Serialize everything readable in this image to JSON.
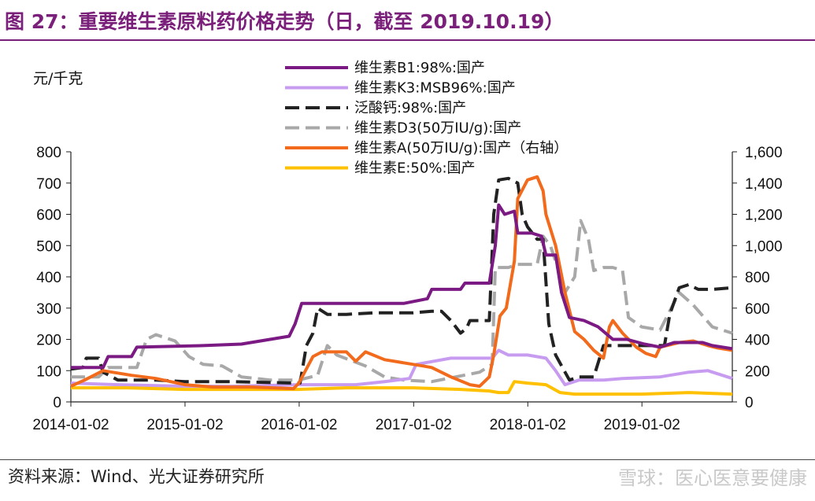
{
  "figure": {
    "title": "图 27：重要维生素原料药价格走势（日，截至 2019.10.19）",
    "source": "资料来源：Wind、光大证券研究所",
    "watermark": "雪球：医心医意要健康",
    "title_color": "#7a1f7a"
  },
  "chart_data": {
    "type": "line",
    "ylabel": "元/千克",
    "ylim": [
      0,
      800
    ],
    "y_ticks": [
      "0",
      "100",
      "200",
      "300",
      "400",
      "500",
      "600",
      "700",
      "800"
    ],
    "y2lim": [
      0,
      1600
    ],
    "y2_ticks": [
      "0",
      "200",
      "400",
      "600",
      "800",
      "1,000",
      "1,200",
      "1,400",
      "1,600"
    ],
    "x_range": [
      "2014-01-02",
      "2019-10-18"
    ],
    "x_ticks": [
      "2014-01-02",
      "2015-01-02",
      "2016-01-02",
      "2017-01-02",
      "2018-01-02",
      "2019-01-02"
    ],
    "legend_position": "top-center",
    "grid": false,
    "series": [
      {
        "name": "维生素B1:98%:国产",
        "color": "#7b1a82",
        "dash": "solid",
        "axis": "left",
        "points": [
          [
            "2014-01-02",
            110
          ],
          [
            "2014-04-15",
            110
          ],
          [
            "2014-05-01",
            145
          ],
          [
            "2014-07-15",
            145
          ],
          [
            "2014-08-01",
            175
          ],
          [
            "2015-03-01",
            180
          ],
          [
            "2015-07-01",
            185
          ],
          [
            "2015-10-01",
            200
          ],
          [
            "2015-12-01",
            210
          ],
          [
            "2015-12-20",
            250
          ],
          [
            "2016-01-10",
            315
          ],
          [
            "2016-12-01",
            315
          ],
          [
            "2017-02-15",
            330
          ],
          [
            "2017-03-01",
            360
          ],
          [
            "2017-06-01",
            360
          ],
          [
            "2017-06-15",
            380
          ],
          [
            "2017-09-01",
            380
          ],
          [
            "2017-09-20",
            500
          ],
          [
            "2017-10-01",
            630
          ],
          [
            "2017-10-20",
            600
          ],
          [
            "2017-11-20",
            610
          ],
          [
            "2017-12-01",
            540
          ],
          [
            "2018-01-15",
            540
          ],
          [
            "2018-02-15",
            530
          ],
          [
            "2018-03-01",
            470
          ],
          [
            "2018-04-01",
            470
          ],
          [
            "2018-04-20",
            350
          ],
          [
            "2018-05-15",
            270
          ],
          [
            "2018-07-01",
            260
          ],
          [
            "2018-08-15",
            240
          ],
          [
            "2018-10-01",
            200
          ],
          [
            "2018-11-15",
            200
          ],
          [
            "2019-01-10",
            185
          ],
          [
            "2019-03-01",
            175
          ],
          [
            "2019-04-15",
            190
          ],
          [
            "2019-07-15",
            190
          ],
          [
            "2019-08-15",
            180
          ],
          [
            "2019-10-18",
            170
          ]
        ]
      },
      {
        "name": "维生素K3:MSB96%:国产",
        "color": "#c79cf0",
        "dash": "solid",
        "axis": "left",
        "points": [
          [
            "2014-01-02",
            60
          ],
          [
            "2014-06-01",
            55
          ],
          [
            "2015-01-01",
            50
          ],
          [
            "2015-06-01",
            50
          ],
          [
            "2016-01-01",
            55
          ],
          [
            "2016-07-01",
            55
          ],
          [
            "2016-10-01",
            65
          ],
          [
            "2016-12-20",
            75
          ],
          [
            "2017-01-10",
            120
          ],
          [
            "2017-05-01",
            140
          ],
          [
            "2017-09-10",
            140
          ],
          [
            "2017-10-01",
            165
          ],
          [
            "2017-11-01",
            150
          ],
          [
            "2018-01-01",
            150
          ],
          [
            "2018-03-01",
            140
          ],
          [
            "2018-04-01",
            100
          ],
          [
            "2018-05-01",
            55
          ],
          [
            "2018-06-15",
            70
          ],
          [
            "2018-09-01",
            70
          ],
          [
            "2018-11-01",
            75
          ],
          [
            "2019-03-01",
            80
          ],
          [
            "2019-06-01",
            95
          ],
          [
            "2019-08-01",
            100
          ],
          [
            "2019-10-18",
            75
          ]
        ]
      },
      {
        "name": "泛酸钙:98%:国产",
        "color": "#222222",
        "dash": "dash-long",
        "axis": "left",
        "points": [
          [
            "2014-01-02",
            105
          ],
          [
            "2014-02-10",
            110
          ],
          [
            "2014-02-20",
            140
          ],
          [
            "2014-04-01",
            140
          ],
          [
            "2014-04-15",
            95
          ],
          [
            "2014-06-01",
            70
          ],
          [
            "2014-08-01",
            70
          ],
          [
            "2014-10-01",
            70
          ],
          [
            "2015-01-01",
            65
          ],
          [
            "2015-06-01",
            65
          ],
          [
            "2015-12-20",
            60
          ],
          [
            "2016-01-05",
            60
          ],
          [
            "2016-01-25",
            180
          ],
          [
            "2016-02-15",
            220
          ],
          [
            "2016-03-01",
            300
          ],
          [
            "2016-04-01",
            280
          ],
          [
            "2016-06-01",
            280
          ],
          [
            "2016-09-01",
            285
          ],
          [
            "2017-01-01",
            285
          ],
          [
            "2017-03-01",
            290
          ],
          [
            "2017-04-01",
            290
          ],
          [
            "2017-05-01",
            260
          ],
          [
            "2017-06-01",
            220
          ],
          [
            "2017-06-20",
            235
          ],
          [
            "2017-07-01",
            260
          ],
          [
            "2017-09-01",
            260
          ],
          [
            "2017-09-15",
            600
          ],
          [
            "2017-10-01",
            710
          ],
          [
            "2017-11-01",
            715
          ],
          [
            "2017-12-01",
            700
          ],
          [
            "2017-12-15",
            600
          ],
          [
            "2018-01-01",
            560
          ],
          [
            "2018-02-01",
            520
          ],
          [
            "2018-02-20",
            520
          ],
          [
            "2018-03-10",
            250
          ],
          [
            "2018-04-01",
            150
          ],
          [
            "2018-05-15",
            70
          ],
          [
            "2018-06-15",
            80
          ],
          [
            "2018-08-01",
            80
          ],
          [
            "2018-09-01",
            180
          ],
          [
            "2018-11-01",
            180
          ],
          [
            "2018-11-20",
            180
          ],
          [
            "2019-01-10",
            180
          ],
          [
            "2019-03-15",
            180
          ],
          [
            "2019-04-01",
            280
          ],
          [
            "2019-05-01",
            365
          ],
          [
            "2019-06-01",
            375
          ],
          [
            "2019-07-01",
            360
          ],
          [
            "2019-08-15",
            360
          ],
          [
            "2019-10-18",
            365
          ]
        ]
      },
      {
        "name": "维生素D3(50万IU/g):国产",
        "color": "#a8a8a8",
        "dash": "dash-long",
        "axis": "left",
        "points": [
          [
            "2014-01-02",
            80
          ],
          [
            "2014-04-01",
            80
          ],
          [
            "2014-05-01",
            110
          ],
          [
            "2014-08-01",
            110
          ],
          [
            "2014-09-01",
            200
          ],
          [
            "2014-10-01",
            215
          ],
          [
            "2014-12-01",
            195
          ],
          [
            "2015-01-15",
            145
          ],
          [
            "2015-03-01",
            120
          ],
          [
            "2015-05-01",
            115
          ],
          [
            "2015-07-01",
            80
          ],
          [
            "2015-10-01",
            70
          ],
          [
            "2016-01-01",
            70
          ],
          [
            "2016-03-01",
            85
          ],
          [
            "2016-04-01",
            180
          ],
          [
            "2016-05-01",
            150
          ],
          [
            "2016-08-01",
            115
          ],
          [
            "2016-10-01",
            80
          ],
          [
            "2016-12-01",
            70
          ],
          [
            "2017-03-01",
            65
          ],
          [
            "2017-08-01",
            95
          ],
          [
            "2017-09-10",
            120
          ],
          [
            "2017-09-20",
            430
          ],
          [
            "2017-11-01",
            430
          ],
          [
            "2017-12-01",
            440
          ],
          [
            "2018-01-01",
            440
          ],
          [
            "2018-02-01",
            440
          ],
          [
            "2018-02-20",
            530
          ],
          [
            "2018-03-15",
            500
          ],
          [
            "2018-04-01",
            450
          ],
          [
            "2018-05-01",
            350
          ],
          [
            "2018-06-01",
            400
          ],
          [
            "2018-06-20",
            580
          ],
          [
            "2018-07-15",
            520
          ],
          [
            "2018-08-01",
            420
          ],
          [
            "2018-09-01",
            430
          ],
          [
            "2018-10-01",
            430
          ],
          [
            "2018-11-01",
            420
          ],
          [
            "2018-11-20",
            270
          ],
          [
            "2019-01-01",
            240
          ],
          [
            "2019-03-01",
            230
          ],
          [
            "2019-05-01",
            350
          ],
          [
            "2019-06-15",
            310
          ],
          [
            "2019-08-15",
            240
          ],
          [
            "2019-10-18",
            220
          ]
        ]
      },
      {
        "name": "维生素A(50万IU/g):国产（右轴）",
        "color": "#f26b1d",
        "dash": "solid",
        "axis": "right",
        "points": [
          [
            "2014-01-02",
            100
          ],
          [
            "2014-02-15",
            140
          ],
          [
            "2014-04-15",
            200
          ],
          [
            "2014-07-15",
            170
          ],
          [
            "2014-10-01",
            150
          ],
          [
            "2015-01-01",
            110
          ],
          [
            "2015-04-01",
            95
          ],
          [
            "2015-08-01",
            95
          ],
          [
            "2015-12-15",
            85
          ],
          [
            "2016-01-01",
            120
          ],
          [
            "2016-02-15",
            290
          ],
          [
            "2016-03-15",
            320
          ],
          [
            "2016-06-01",
            320
          ],
          [
            "2016-07-01",
            260
          ],
          [
            "2016-08-01",
            320
          ],
          [
            "2016-10-01",
            270
          ],
          [
            "2016-12-01",
            250
          ],
          [
            "2017-01-01",
            240
          ],
          [
            "2017-02-01",
            230
          ],
          [
            "2017-03-01",
            220
          ],
          [
            "2017-05-01",
            160
          ],
          [
            "2017-07-01",
            110
          ],
          [
            "2017-08-01",
            100
          ],
          [
            "2017-09-01",
            160
          ],
          [
            "2017-09-15",
            300
          ],
          [
            "2017-10-05",
            550
          ],
          [
            "2017-10-25",
            600
          ],
          [
            "2017-11-20",
            900
          ],
          [
            "2017-12-01",
            1300
          ],
          [
            "2018-01-01",
            1420
          ],
          [
            "2018-02-01",
            1440
          ],
          [
            "2018-02-20",
            1350
          ],
          [
            "2018-03-01",
            1200
          ],
          [
            "2018-04-01",
            1000
          ],
          [
            "2018-05-01",
            700
          ],
          [
            "2018-06-01",
            450
          ],
          [
            "2018-07-01",
            400
          ],
          [
            "2018-08-01",
            330
          ],
          [
            "2018-09-01",
            280
          ],
          [
            "2018-09-20",
            480
          ],
          [
            "2018-10-01",
            520
          ],
          [
            "2018-11-01",
            440
          ],
          [
            "2018-12-15",
            350
          ],
          [
            "2019-01-15",
            310
          ],
          [
            "2019-02-15",
            290
          ],
          [
            "2019-03-01",
            350
          ],
          [
            "2019-05-01",
            380
          ],
          [
            "2019-06-15",
            390
          ],
          [
            "2019-08-01",
            360
          ],
          [
            "2019-09-01",
            345
          ],
          [
            "2019-10-18",
            330
          ]
        ]
      },
      {
        "name": "维生素E:50%:国产",
        "color": "#ffc000",
        "dash": "solid",
        "axis": "left",
        "points": [
          [
            "2014-01-02",
            45
          ],
          [
            "2014-07-01",
            45
          ],
          [
            "2015-01-01",
            40
          ],
          [
            "2015-06-01",
            40
          ],
          [
            "2016-01-01",
            40
          ],
          [
            "2016-06-01",
            45
          ],
          [
            "2017-01-01",
            45
          ],
          [
            "2017-06-01",
            40
          ],
          [
            "2017-09-01",
            35
          ],
          [
            "2017-10-01",
            30
          ],
          [
            "2017-11-01",
            30
          ],
          [
            "2017-11-20",
            65
          ],
          [
            "2018-01-01",
            60
          ],
          [
            "2018-03-01",
            55
          ],
          [
            "2018-04-15",
            30
          ],
          [
            "2018-06-01",
            25
          ],
          [
            "2018-09-01",
            25
          ],
          [
            "2019-01-01",
            25
          ],
          [
            "2019-06-01",
            30
          ],
          [
            "2019-10-18",
            25
          ]
        ]
      }
    ]
  }
}
